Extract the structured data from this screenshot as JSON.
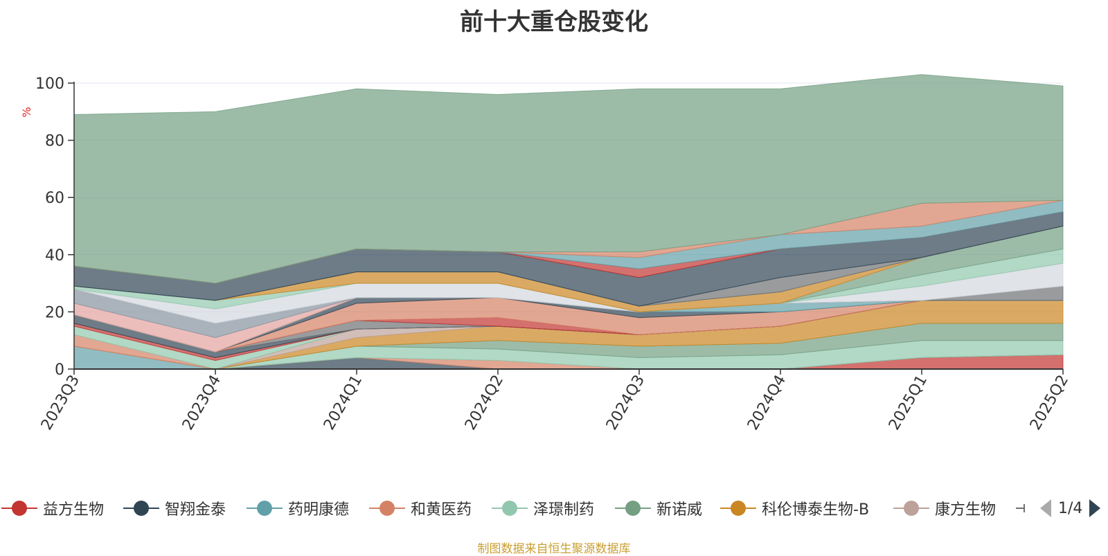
{
  "chart_data": {
    "type": "area",
    "title": "前十大重仓股变化",
    "ylabel": "%",
    "ylim": [
      0,
      100
    ],
    "yticks": [
      "0",
      "20",
      "40",
      "60",
      "80",
      "100"
    ],
    "categories": [
      "2023Q3",
      "2023Q4",
      "2024Q1",
      "2024Q2",
      "2024Q3",
      "2024Q4",
      "2025Q1",
      "2025Q2"
    ],
    "stacked": true,
    "grid": true,
    "legend_position": "bottom",
    "series": [
      {
        "name": "益方生物",
        "color": "#c23531",
        "values": [
          0,
          0,
          0,
          0,
          0,
          0,
          4,
          5
        ]
      },
      {
        "name": "智翔金泰",
        "color": "#2f4554",
        "values": [
          0,
          0,
          4,
          0,
          0,
          0,
          0,
          0
        ]
      },
      {
        "name": "药明康德",
        "color": "#61a0a8",
        "values": [
          8,
          0,
          0,
          0,
          0,
          0,
          0,
          0
        ]
      },
      {
        "name": "和黄医药",
        "color": "#d48265",
        "values": [
          0,
          0,
          0,
          3,
          0,
          0,
          0,
          0
        ]
      },
      {
        "name": "泽璟制药",
        "color": "#91c7ae",
        "values": [
          0,
          0,
          4,
          4,
          4,
          5,
          6,
          5
        ]
      },
      {
        "name": "新诺威",
        "color": "#749f83",
        "values": [
          0,
          0,
          0,
          3,
          4,
          4,
          6,
          6
        ]
      },
      {
        "name": "科伦博泰生物-B",
        "color": "#ca8622",
        "values": [
          0,
          0,
          3,
          5,
          4,
          6,
          8,
          8
        ]
      },
      {
        "name": "康方生物",
        "color": "#bda29a",
        "values": [
          0,
          0,
          3,
          0,
          0,
          0,
          0,
          0
        ]
      }
    ],
    "series_other": [
      {
        "color": "#d48265",
        "values": [
          4,
          0,
          0,
          0,
          0,
          0,
          0,
          0
        ]
      },
      {
        "color": "#91c7ae",
        "values": [
          3,
          3,
          0,
          0,
          0,
          0,
          0,
          0
        ]
      },
      {
        "color": "#c23531",
        "values": [
          1,
          1,
          0,
          0,
          0,
          0,
          0,
          0
        ]
      },
      {
        "color": "#2f4554",
        "values": [
          3,
          2,
          0,
          0,
          0,
          0,
          0,
          0
        ]
      },
      {
        "color": "#6e7074",
        "values": [
          0,
          0,
          3,
          0,
          0,
          0,
          0,
          0
        ]
      },
      {
        "color": "#c23531",
        "values": [
          0,
          0,
          0,
          3,
          0,
          0,
          0,
          0
        ]
      },
      {
        "color": "#d48265",
        "values": [
          0,
          0,
          6,
          7,
          6,
          5,
          0,
          0
        ]
      },
      {
        "color": "#2f4554",
        "values": [
          0,
          0,
          2,
          0,
          2,
          0,
          0,
          0
        ]
      },
      {
        "color": "#61a0a8",
        "values": [
          0,
          0,
          0,
          0,
          0,
          3,
          0,
          0
        ]
      },
      {
        "color": "#6e7074",
        "values": [
          0,
          0,
          0,
          0,
          0,
          0,
          0,
          5
        ]
      },
      {
        "color": "#d3d7dd",
        "values": [
          0,
          0,
          0,
          0,
          0,
          0,
          5,
          8
        ]
      },
      {
        "color": "#91c7ae",
        "values": [
          0,
          0,
          0,
          0,
          0,
          0,
          4,
          5
        ]
      },
      {
        "color": "#749f83",
        "values": [
          0,
          0,
          0,
          0,
          0,
          0,
          6,
          8
        ]
      },
      {
        "color": "#e3a2a0",
        "values": [
          4,
          5,
          0,
          0,
          0,
          0,
          0,
          0
        ]
      },
      {
        "color": "#8693a0",
        "values": [
          5,
          5,
          0,
          0,
          0,
          0,
          0,
          0
        ]
      },
      {
        "color": "#d3d7dd",
        "values": [
          0,
          5,
          5,
          5,
          0,
          0,
          0,
          0
        ]
      },
      {
        "color": "#91c7ae",
        "values": [
          1,
          3,
          0,
          0,
          0,
          0,
          0,
          0
        ]
      },
      {
        "color": "#ca8622",
        "values": [
          0,
          0,
          4,
          4,
          2,
          4,
          0,
          0
        ]
      },
      {
        "color": "#749f83",
        "values": [
          0,
          0,
          0,
          0,
          0,
          0,
          0,
          0
        ]
      },
      {
        "color": "#6e7074",
        "values": [
          0,
          0,
          0,
          0,
          0,
          5,
          0,
          0
        ]
      },
      {
        "color": "#2f4554",
        "values": [
          7,
          6,
          8,
          7,
          10,
          10,
          7,
          5
        ]
      },
      {
        "color": "#c23531",
        "values": [
          0,
          0,
          0,
          0,
          3,
          0,
          0,
          0
        ]
      },
      {
        "color": "#61a0a8",
        "values": [
          0,
          0,
          0,
          0,
          4,
          5,
          4,
          4
        ]
      },
      {
        "color": "#d48265",
        "values": [
          0,
          0,
          0,
          0,
          2,
          0,
          8,
          0
        ]
      },
      {
        "color": "#749f83",
        "values": [
          53,
          60,
          56,
          55,
          57,
          51,
          45,
          40
        ]
      }
    ]
  },
  "legend": {
    "page_text": "1/4"
  },
  "footnote": "制图数据来自恒生聚源数据库"
}
